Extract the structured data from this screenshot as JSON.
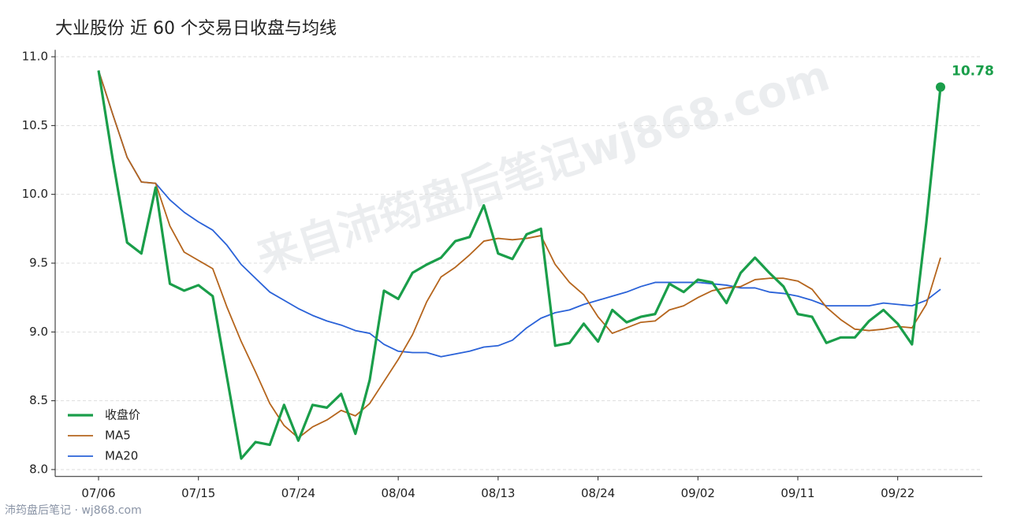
{
  "chart_data": {
    "type": "line",
    "title": "大业股份 近 60 个交易日收盘与均线",
    "watermark": "来自沛筠盘后笔记wj868.com",
    "footer": "沛筠盘后笔记 · wj868.com",
    "categories": [
      "07/06",
      null,
      null,
      null,
      null,
      null,
      null,
      "07/15",
      null,
      null,
      null,
      null,
      null,
      null,
      "07/24",
      null,
      null,
      null,
      null,
      null,
      null,
      "08/04",
      null,
      null,
      null,
      null,
      null,
      null,
      "08/13",
      null,
      null,
      null,
      null,
      null,
      null,
      "08/24",
      null,
      null,
      null,
      null,
      null,
      null,
      "09/02",
      null,
      null,
      null,
      null,
      null,
      null,
      "09/11",
      null,
      null,
      null,
      null,
      null,
      null,
      "09/22",
      null,
      null,
      null
    ],
    "series": [
      {
        "name": "收盘价",
        "color": "#1a9e4a",
        "values": [
          10.9,
          10.25,
          9.65,
          9.57,
          10.05,
          9.35,
          9.3,
          9.34,
          9.26,
          8.67,
          8.08,
          8.2,
          8.18,
          8.47,
          8.21,
          8.47,
          8.45,
          8.55,
          8.26,
          8.65,
          9.3,
          9.24,
          9.43,
          9.49,
          9.54,
          9.66,
          9.69,
          9.92,
          9.57,
          9.53,
          9.71,
          9.75,
          8.9,
          8.92,
          9.06,
          8.93,
          9.16,
          9.07,
          9.11,
          9.13,
          9.35,
          9.29,
          9.38,
          9.36,
          9.21,
          9.43,
          9.54,
          9.43,
          9.33,
          9.13,
          9.11,
          8.92,
          8.96,
          8.96,
          9.08,
          9.16,
          9.06,
          8.91,
          9.79,
          10.78
        ]
      },
      {
        "name": "MA5",
        "color": "#b5651d",
        "values": [
          10.9,
          10.58,
          10.27,
          10.09,
          10.08,
          9.77,
          9.58,
          9.52,
          9.46,
          9.18,
          8.93,
          8.71,
          8.48,
          8.32,
          8.23,
          8.31,
          8.36,
          8.43,
          8.39,
          8.48,
          8.64,
          8.8,
          8.98,
          9.22,
          9.4,
          9.47,
          9.56,
          9.66,
          9.68,
          9.67,
          9.68,
          9.7,
          9.49,
          9.36,
          9.27,
          9.11,
          8.99,
          9.03,
          9.07,
          9.08,
          9.16,
          9.19,
          9.25,
          9.3,
          9.32,
          9.33,
          9.38,
          9.39,
          9.39,
          9.37,
          9.31,
          9.18,
          9.09,
          9.02,
          9.01,
          9.02,
          9.04,
          9.03,
          9.2,
          9.54
        ]
      },
      {
        "name": "MA20",
        "color": "#2a62d8",
        "values": [
          10.9,
          10.58,
          10.27,
          10.09,
          10.08,
          9.96,
          9.87,
          9.8,
          9.74,
          9.63,
          9.49,
          9.39,
          9.29,
          9.23,
          9.17,
          9.12,
          9.08,
          9.05,
          9.01,
          8.99,
          8.91,
          8.86,
          8.85,
          8.85,
          8.82,
          8.84,
          8.86,
          8.89,
          8.9,
          8.94,
          9.03,
          9.1,
          9.14,
          9.16,
          9.2,
          9.23,
          9.26,
          9.29,
          9.33,
          9.36,
          9.36,
          9.36,
          9.36,
          9.35,
          9.34,
          9.32,
          9.32,
          9.29,
          9.28,
          9.26,
          9.23,
          9.19,
          9.19,
          9.19,
          9.19,
          9.21,
          9.2,
          9.19,
          9.23,
          9.31
        ]
      }
    ],
    "ylim": [
      7.95,
      11.05
    ],
    "yticks": [
      {
        "value": 8,
        "label": "8.0"
      },
      {
        "value": 8.5,
        "label": "8.5"
      },
      {
        "value": 9,
        "label": "9.0"
      },
      {
        "value": 9.5,
        "label": "9.5"
      },
      {
        "value": 10,
        "label": "10.0"
      },
      {
        "value": 10.5,
        "label": "10.5"
      },
      {
        "value": 11,
        "label": "11.0"
      }
    ],
    "grid": true,
    "legend": "lower-left"
  }
}
